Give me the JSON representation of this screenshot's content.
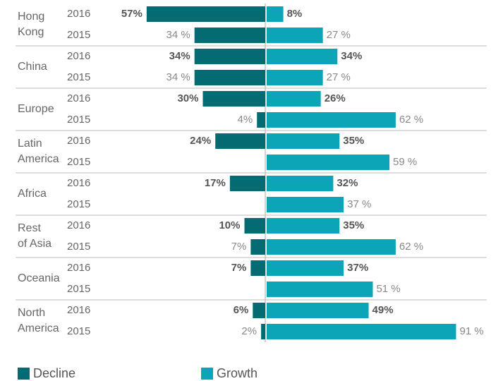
{
  "chart_data": {
    "type": "diverging-bar",
    "groups": [
      {
        "lines": [
          "Hong",
          "Kong"
        ]
      },
      {
        "lines": [
          "China"
        ]
      },
      {
        "lines": [
          "Europe"
        ]
      },
      {
        "lines": [
          "Latin",
          "America"
        ]
      },
      {
        "lines": [
          "Africa"
        ]
      },
      {
        "lines": [
          "Rest",
          "of Asia"
        ]
      },
      {
        "lines": [
          "Oceania"
        ]
      },
      {
        "lines": [
          "North",
          "America"
        ]
      }
    ],
    "years": [
      "2016",
      "2015"
    ],
    "series": [
      {
        "name": "Decline",
        "color": "#046b73",
        "direction": "left",
        "values": [
          57,
          34,
          34,
          34,
          30,
          4,
          24,
          null,
          17,
          null,
          10,
          7,
          7,
          null,
          6,
          2
        ],
        "value_labels": [
          "57%",
          "34 %",
          "34%",
          "34 %",
          "30%",
          "4%",
          "24%",
          null,
          "17%",
          null,
          "10%",
          "7%",
          "7%",
          null,
          "6%",
          "2%"
        ]
      },
      {
        "name": "Growth",
        "color": "#0ba5b7",
        "direction": "right",
        "values": [
          8,
          27,
          34,
          27,
          26,
          62,
          35,
          59,
          32,
          37,
          35,
          62,
          37,
          51,
          49,
          91
        ],
        "value_labels": [
          "8%",
          "27 %",
          "34%",
          "27 %",
          "26%",
          "62 %",
          "35%",
          "59 %",
          "32%",
          "37 %",
          "35%",
          "62 %",
          "37%",
          "51 %",
          "49%",
          "91 %"
        ]
      }
    ]
  }
}
